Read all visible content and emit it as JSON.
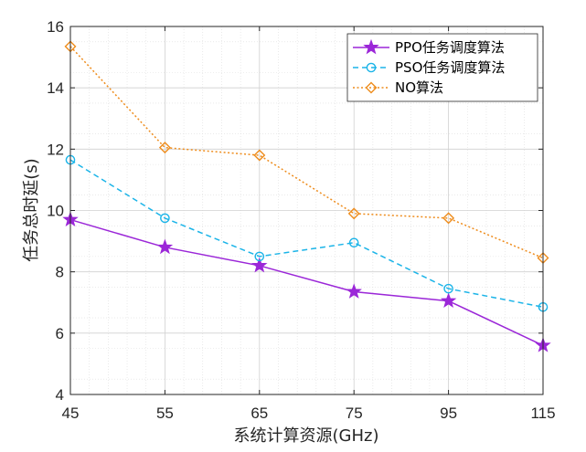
{
  "chart_data": {
    "type": "line",
    "title": "",
    "xlabel": "系统计算资源(GHz)",
    "ylabel": "任务总时延(s)",
    "categories": [
      "45",
      "55",
      "65",
      "75",
      "95",
      "115"
    ],
    "ylim": [
      4,
      16
    ],
    "yticks": [
      "4",
      "6",
      "8",
      "10",
      "12",
      "14",
      "16"
    ],
    "grid": "major-and-minor",
    "legend_position": "top-right",
    "series": [
      {
        "name": "PPO任务调度算法",
        "values": [
          9.7,
          8.8,
          8.2,
          7.35,
          7.05,
          5.6
        ],
        "color": "#9B27D8",
        "line_style": "solid",
        "marker": "star"
      },
      {
        "name": "PSO任务调度算法",
        "values": [
          11.65,
          9.75,
          8.5,
          8.95,
          7.45,
          6.85
        ],
        "color": "#1BB4E8",
        "line_style": "dashed",
        "marker": "circle"
      },
      {
        "name": "NO算法",
        "values": [
          15.35,
          12.05,
          11.8,
          9.9,
          9.75,
          8.45
        ],
        "color": "#EE8C1C",
        "line_style": "dotted",
        "marker": "diamond"
      }
    ]
  }
}
